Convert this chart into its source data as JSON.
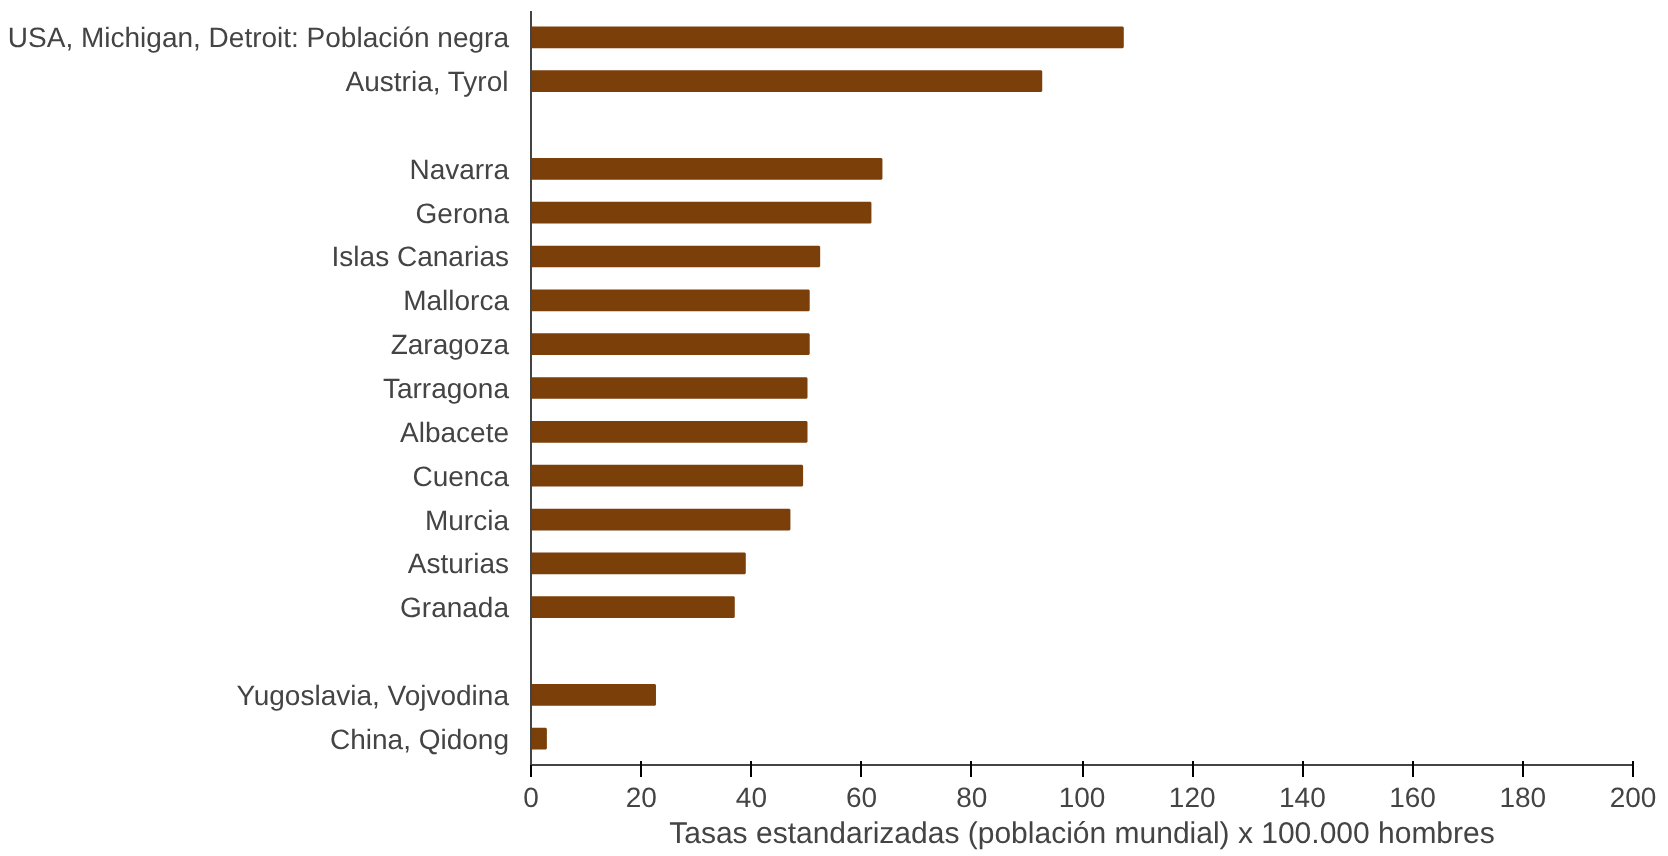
{
  "chart_data": {
    "type": "bar",
    "orientation": "horizontal",
    "xlabel": "Tasas estandarizadas (población mundial) x 100.000 hombres",
    "categories": [
      "USA, Michigan, Detroit: Población negra",
      "Austria, Tyrol",
      null,
      "Navarra",
      "Gerona",
      "Islas Canarias",
      "Mallorca",
      "Zaragoza",
      "Tarragona",
      "Albacete",
      "Cuenca",
      "Murcia",
      "Asturias",
      "Granada",
      null,
      "Yugoslavia, Vojvodina",
      "China, Qidong"
    ],
    "values": [
      107.4,
      92.6,
      null,
      63.6,
      61.6,
      52.3,
      50.4,
      50.4,
      50.0,
      50.0,
      49.2,
      46.9,
      38.8,
      36.8,
      null,
      22.5,
      2.7
    ],
    "color": "#7b3f0a",
    "xlim": [
      0,
      200
    ],
    "xticks": [
      0,
      20,
      40,
      60,
      80,
      100,
      120,
      140,
      160,
      180,
      200
    ],
    "grid": false
  }
}
